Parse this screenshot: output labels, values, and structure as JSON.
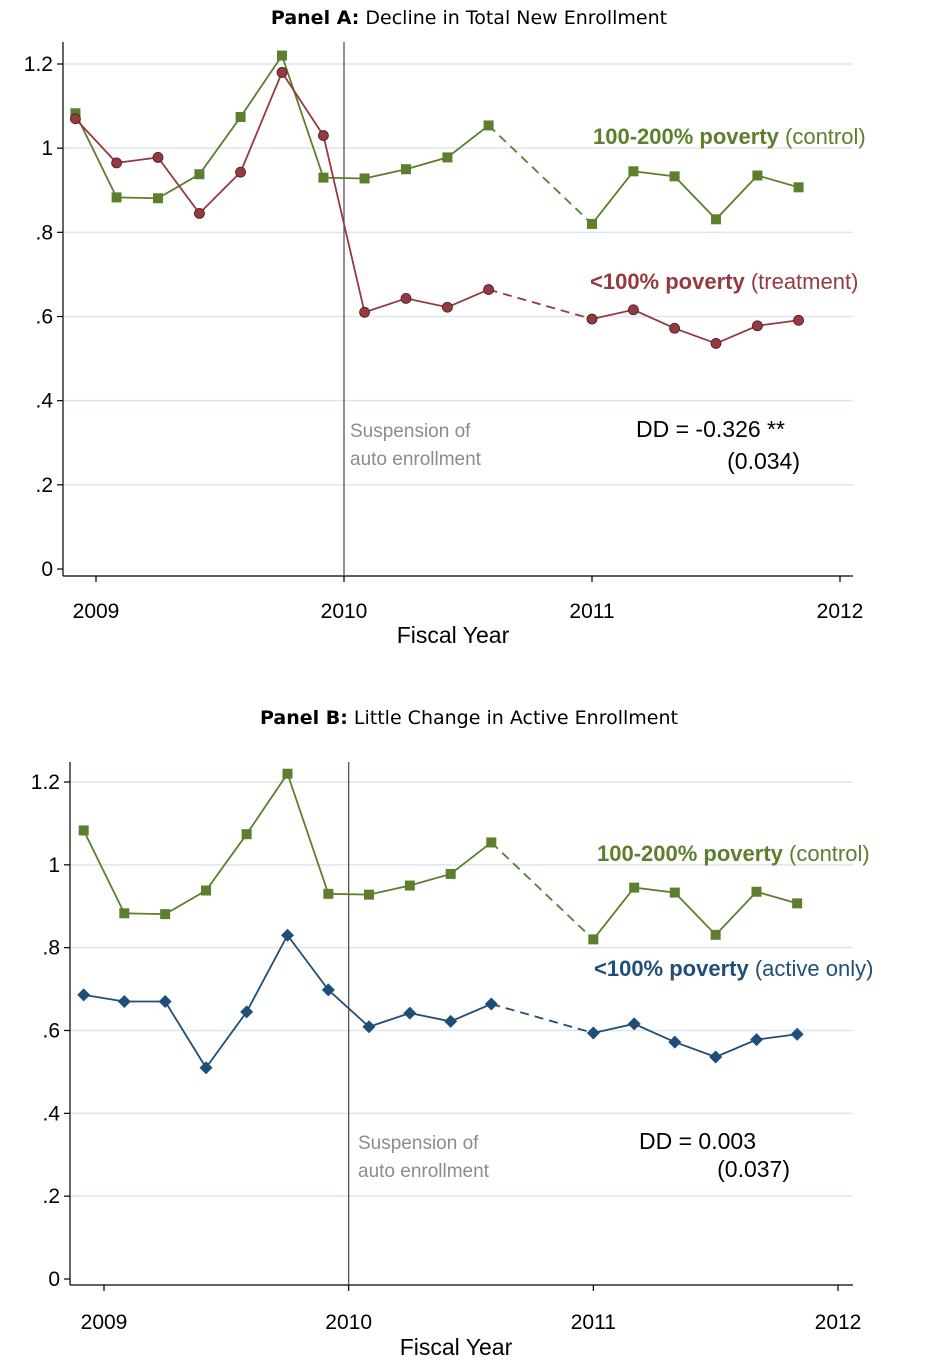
{
  "colors": {
    "control": "#5b7f2d",
    "treatment": "#953a3f",
    "active": "#1f4e78",
    "grid": "#dce6ec",
    "vline": "#555555",
    "note": "#8c8c8c"
  },
  "chart_data": [
    {
      "type": "line",
      "title_bold": "Panel A:",
      "title": "Decline in Total New Enrollment",
      "xlabel": "Fiscal Year",
      "ylabel": "",
      "xlim": [
        2008.9,
        2012
      ],
      "ylim": [
        0,
        1.2
      ],
      "xticks": [
        "2009",
        "2010",
        "2011",
        "2012"
      ],
      "yticks": [
        "0",
        ".2",
        ".4",
        ".6",
        ".8",
        "1",
        "1.2"
      ],
      "grid": true,
      "vline_x": 2010,
      "vline_note": [
        "Suspension of",
        "auto enrollment"
      ],
      "dd_text": "DD = -0.326 **",
      "se_text": "(0.034)",
      "series": [
        {
          "key": "control",
          "marker": "square",
          "legend_bold": "100-200% poverty",
          "legend_rest": "(control)",
          "points": [
            {
              "x": 2008.917,
              "y": 1.083
            },
            {
              "x": 2009.083,
              "y": 0.883
            },
            {
              "x": 2009.25,
              "y": 0.881
            },
            {
              "x": 2009.417,
              "y": 0.938
            },
            {
              "x": 2009.583,
              "y": 1.074
            },
            {
              "x": 2009.75,
              "y": 1.22
            },
            {
              "x": 2009.917,
              "y": 0.93
            },
            {
              "x": 2010.083,
              "y": 0.928
            },
            {
              "x": 2010.25,
              "y": 0.95
            },
            {
              "x": 2010.417,
              "y": 0.978
            },
            {
              "x": 2010.583,
              "y": 1.054
            },
            {
              "x": 2011.0,
              "y": 0.82
            },
            {
              "x": 2011.167,
              "y": 0.945
            },
            {
              "x": 2011.333,
              "y": 0.933
            },
            {
              "x": 2011.5,
              "y": 0.831
            },
            {
              "x": 2011.667,
              "y": 0.935
            },
            {
              "x": 2011.833,
              "y": 0.907
            }
          ],
          "dashed_after_index": 10
        },
        {
          "key": "treatment",
          "marker": "circle",
          "legend_bold": "<100% poverty",
          "legend_rest": "(treatment)",
          "points": [
            {
              "x": 2008.917,
              "y": 1.07
            },
            {
              "x": 2009.083,
              "y": 0.965
            },
            {
              "x": 2009.25,
              "y": 0.978
            },
            {
              "x": 2009.417,
              "y": 0.845
            },
            {
              "x": 2009.583,
              "y": 0.943
            },
            {
              "x": 2009.75,
              "y": 1.18
            },
            {
              "x": 2009.917,
              "y": 1.03
            },
            {
              "x": 2010.083,
              "y": 0.61
            },
            {
              "x": 2010.25,
              "y": 0.643
            },
            {
              "x": 2010.417,
              "y": 0.622
            },
            {
              "x": 2010.583,
              "y": 0.664
            },
            {
              "x": 2011.0,
              "y": 0.594
            },
            {
              "x": 2011.167,
              "y": 0.616
            },
            {
              "x": 2011.333,
              "y": 0.572
            },
            {
              "x": 2011.5,
              "y": 0.536
            },
            {
              "x": 2011.667,
              "y": 0.578
            },
            {
              "x": 2011.833,
              "y": 0.591
            }
          ],
          "dashed_after_index": 10
        }
      ]
    },
    {
      "type": "line",
      "title_bold": "Panel B:",
      "title": "Little Change in Active Enrollment",
      "xlabel": "Fiscal Year",
      "ylabel": "",
      "xlim": [
        2008.9,
        2012
      ],
      "ylim": [
        0,
        1.2
      ],
      "xticks": [
        "2009",
        "2010",
        "2011",
        "2012"
      ],
      "yticks": [
        "0",
        ".2",
        ".4",
        ".6",
        ".8",
        "1",
        "1.2"
      ],
      "grid": true,
      "vline_x": 2010,
      "vline_note": [
        "Suspension of",
        "auto enrollment"
      ],
      "dd_text": "DD = 0.003",
      "se_text": "(0.037)",
      "series": [
        {
          "key": "control",
          "marker": "square",
          "legend_bold": "100-200% poverty",
          "legend_rest": "(control)",
          "points": [
            {
              "x": 2008.917,
              "y": 1.083
            },
            {
              "x": 2009.083,
              "y": 0.883
            },
            {
              "x": 2009.25,
              "y": 0.881
            },
            {
              "x": 2009.417,
              "y": 0.938
            },
            {
              "x": 2009.583,
              "y": 1.074
            },
            {
              "x": 2009.75,
              "y": 1.22
            },
            {
              "x": 2009.917,
              "y": 0.93
            },
            {
              "x": 2010.083,
              "y": 0.928
            },
            {
              "x": 2010.25,
              "y": 0.95
            },
            {
              "x": 2010.417,
              "y": 0.978
            },
            {
              "x": 2010.583,
              "y": 1.054
            },
            {
              "x": 2011.0,
              "y": 0.82
            },
            {
              "x": 2011.167,
              "y": 0.945
            },
            {
              "x": 2011.333,
              "y": 0.933
            },
            {
              "x": 2011.5,
              "y": 0.831
            },
            {
              "x": 2011.667,
              "y": 0.935
            },
            {
              "x": 2011.833,
              "y": 0.907
            }
          ],
          "dashed_after_index": 10
        },
        {
          "key": "active",
          "marker": "diamond",
          "legend_bold": "<100% poverty",
          "legend_rest": "(active only)",
          "points": [
            {
              "x": 2008.917,
              "y": 0.686
            },
            {
              "x": 2009.083,
              "y": 0.67
            },
            {
              "x": 2009.25,
              "y": 0.67
            },
            {
              "x": 2009.417,
              "y": 0.51
            },
            {
              "x": 2009.583,
              "y": 0.645
            },
            {
              "x": 2009.75,
              "y": 0.83
            },
            {
              "x": 2009.917,
              "y": 0.698
            },
            {
              "x": 2010.083,
              "y": 0.609
            },
            {
              "x": 2010.25,
              "y": 0.642
            },
            {
              "x": 2010.417,
              "y": 0.622
            },
            {
              "x": 2010.583,
              "y": 0.664
            },
            {
              "x": 2011.0,
              "y": 0.594
            },
            {
              "x": 2011.167,
              "y": 0.616
            },
            {
              "x": 2011.333,
              "y": 0.572
            },
            {
              "x": 2011.5,
              "y": 0.536
            },
            {
              "x": 2011.667,
              "y": 0.578
            },
            {
              "x": 2011.833,
              "y": 0.591
            }
          ],
          "dashed_after_index": 10
        }
      ]
    }
  ]
}
